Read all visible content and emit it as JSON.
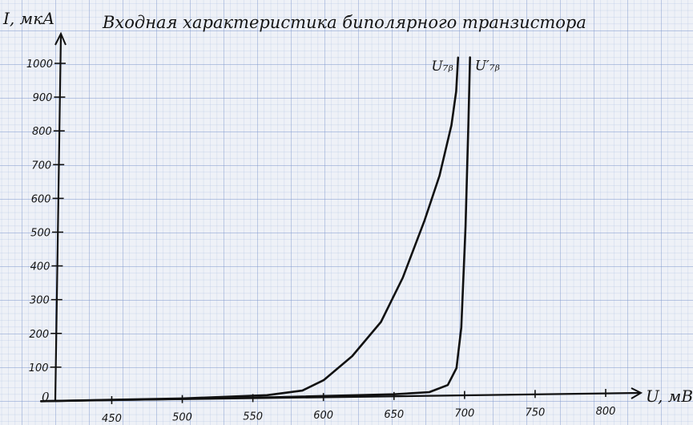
{
  "chart_data": {
    "type": "line",
    "title": "Входная характеристика биполярного транзистора",
    "ylabel": "I, мкА",
    "xlabel": "U, мВ",
    "x_ticks": [
      450,
      500,
      550,
      600,
      650,
      700,
      750,
      800
    ],
    "y_ticks": [
      100,
      200,
      300,
      400,
      500,
      600,
      700,
      800,
      900,
      1000
    ],
    "origin_label": "0",
    "xlim": [
      410,
      825
    ],
    "ylim": [
      0,
      1000
    ],
    "grid": true,
    "series": [
      {
        "name": "U₇ᵦ",
        "color": "#111111",
        "x": [
          400,
          500,
          560,
          585,
          600,
          620,
          640,
          655,
          670,
          680,
          688,
          691,
          692
        ],
        "y": [
          0,
          2,
          8,
          20,
          50,
          120,
          220,
          350,
          520,
          650,
          800,
          900,
          1000
        ]
      },
      {
        "name": "U′₇ᵦ",
        "color": "#111111",
        "x": [
          400,
          550,
          650,
          675,
          688,
          694,
          697,
          699,
          700,
          700.5
        ],
        "y": [
          0,
          1,
          5,
          10,
          30,
          80,
          200,
          500,
          800,
          1000
        ]
      }
    ]
  }
}
